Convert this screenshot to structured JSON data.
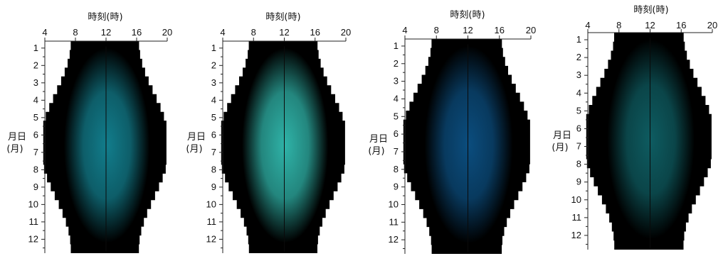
{
  "chart_data": [
    {
      "type": "heatmap",
      "title": "時刻(時)",
      "ylabel_line1": "月日",
      "ylabel_line2": "(月)",
      "x_ticks": [
        4,
        8,
        12,
        16,
        20
      ],
      "y_ticks": [
        1,
        2,
        3,
        4,
        5,
        6,
        7,
        8,
        9,
        10,
        11,
        12
      ],
      "xlim": [
        4,
        20
      ],
      "ylim": [
        0.6,
        12.8
      ],
      "peak_color": "#127d8c",
      "edge_color": "#000000",
      "noon_line": 12
    },
    {
      "type": "heatmap",
      "title": "時刻(時)",
      "ylabel_line1": "月日",
      "ylabel_line2": "(月)",
      "x_ticks": [
        4,
        8,
        12,
        16,
        20
      ],
      "y_ticks": [
        1,
        2,
        3,
        4,
        5,
        6,
        7,
        8,
        9,
        10,
        11,
        12
      ],
      "xlim": [
        4,
        20
      ],
      "ylim": [
        0.6,
        12.8
      ],
      "peak_color": "#2fb3a8",
      "edge_color": "#000000",
      "noon_line": 12
    },
    {
      "type": "heatmap",
      "title": "時刻(時)",
      "ylabel_line1": "月日",
      "ylabel_line2": "(月)",
      "x_ticks": [
        4,
        8,
        12,
        16,
        20
      ],
      "y_ticks": [
        1,
        2,
        3,
        4,
        5,
        6,
        7,
        8,
        9,
        10,
        11,
        12
      ],
      "xlim": [
        4,
        20
      ],
      "ylim": [
        0.6,
        12.8
      ],
      "peak_color": "#0b4d7e",
      "edge_color": "#000000",
      "noon_line": 12
    },
    {
      "type": "heatmap",
      "title": "時刻(時)",
      "ylabel_line1": "月日",
      "ylabel_line2": "(月)",
      "x_ticks": [
        4,
        8,
        12,
        16,
        20
      ],
      "y_ticks": [
        1,
        2,
        3,
        4,
        5,
        6,
        7,
        8,
        9,
        10,
        11,
        12
      ],
      "xlim": [
        4,
        20
      ],
      "ylim": [
        0.6,
        12.8
      ],
      "peak_color": "#0e5c61",
      "edge_color": "#000000",
      "noon_line": 12
    }
  ]
}
